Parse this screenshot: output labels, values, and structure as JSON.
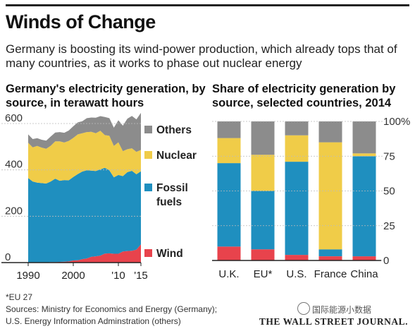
{
  "header": {
    "title": "Winds of Change",
    "subtitle": "Germany is boosting its wind-power production, which already tops that of many countries, as it works to phase out nuclear energy"
  },
  "colors": {
    "others": "#8c8c8c",
    "nuclear": "#f0cc48",
    "fossil": "#1f8fbf",
    "wind": "#e8434c",
    "gridline": "#bbbbbb"
  },
  "chart_data": [
    {
      "type": "area",
      "stacked": true,
      "title": "Germany's electricity generation, by source, in terawatt hours",
      "x": [
        1990,
        1991,
        1992,
        1993,
        1994,
        1995,
        1996,
        1997,
        1998,
        1999,
        2000,
        2001,
        2002,
        2003,
        2004,
        2005,
        2006,
        2007,
        2008,
        2009,
        2010,
        2011,
        2012,
        2013,
        2014,
        2015
      ],
      "x_ticks": [
        "1990",
        "2000",
        "'10",
        "'15"
      ],
      "x_tick_values": [
        1990,
        2000,
        2010,
        2015
      ],
      "y_ticks": [
        "0",
        "200",
        "400",
        "600"
      ],
      "y_tick_values": [
        0,
        200,
        400,
        600
      ],
      "ylim": [
        0,
        600
      ],
      "grid": true,
      "series": [
        {
          "name": "Wind",
          "color_key": "wind",
          "values": [
            0,
            0,
            0,
            1,
            1,
            2,
            2,
            3,
            4,
            5,
            9,
            10,
            15,
            18,
            25,
            27,
            30,
            39,
            40,
            38,
            38,
            48,
            50,
            51,
            56,
            79
          ]
        },
        {
          "name": "Fossil fuels",
          "color_key": "fossil",
          "values": [
            365,
            350,
            345,
            342,
            340,
            348,
            360,
            350,
            352,
            350,
            360,
            372,
            378,
            380,
            372,
            368,
            372,
            370,
            358,
            330,
            340,
            325,
            340,
            345,
            325,
            315
          ]
        },
        {
          "name": "Nuclear",
          "color_key": "nuclear",
          "values": [
            152,
            147,
            158,
            153,
            150,
            154,
            161,
            170,
            162,
            170,
            169,
            171,
            165,
            165,
            167,
            163,
            167,
            141,
            149,
            135,
            141,
            108,
            99,
            97,
            97,
            92
          ]
        },
        {
          "name": "Others",
          "color_key": "others",
          "values": [
            36,
            36,
            34,
            34,
            35,
            40,
            38,
            40,
            42,
            45,
            50,
            52,
            52,
            60,
            62,
            67,
            63,
            78,
            76,
            79,
            95,
            110,
            132,
            140,
            140,
            160
          ]
        }
      ],
      "legend": [
        "Others",
        "Nuclear",
        "Fossil fuels",
        "Wind"
      ],
      "legend_placement": "right"
    },
    {
      "type": "bar",
      "stacked": true,
      "percent": true,
      "title": "Share of electricity generation by source, selected countries, 2014",
      "categories": [
        "U.K.",
        "EU*",
        "U.S.",
        "France",
        "China"
      ],
      "y_ticks": [
        "0",
        "25",
        "50",
        "75",
        "100%"
      ],
      "y_tick_values": [
        0,
        25,
        50,
        75,
        100
      ],
      "ylim": [
        0,
        100
      ],
      "series": [
        {
          "name": "Wind",
          "color_key": "wind",
          "values": [
            10,
            8,
            4,
            3,
            3
          ]
        },
        {
          "name": "Fossil fuels",
          "color_key": "fossil",
          "values": [
            60,
            42,
            67,
            5,
            72
          ]
        },
        {
          "name": "Nuclear",
          "color_key": "nuclear",
          "values": [
            18,
            26,
            19,
            77,
            2
          ]
        },
        {
          "name": "Others",
          "color_key": "others",
          "values": [
            12,
            24,
            10,
            15,
            23
          ]
        }
      ]
    }
  ],
  "footnotes": {
    "eu": "*EU 27",
    "sources_line1": "Sources: Ministry for Economics and Energy (Germany);",
    "sources_line2": "U.S. Energy Information Adminstration (others)"
  },
  "watermark": "国际能源小数据",
  "publisher": "THE WALL STREET JOURNAL."
}
